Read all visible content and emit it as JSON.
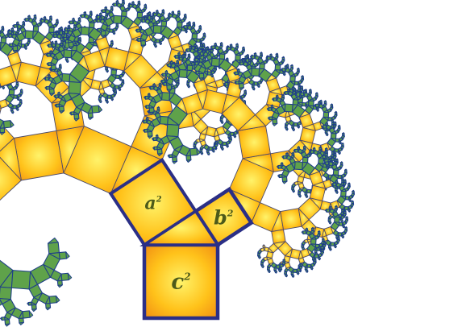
{
  "diagram": {
    "kind": "pythagoras-tree",
    "labels": {
      "a": "a",
      "b": "b",
      "c": "c",
      "exponent": "2"
    },
    "colors": {
      "fill_center": "#fff36a",
      "fill_mid": "#ffc21a",
      "fill_edge": "#f08a12",
      "outline": "#4a4a6a",
      "main_outline": "#2b2f86",
      "leaf_fill": "#5fa24a",
      "leaf_outline": "#1f3f88",
      "label_text": "#4d5a1a",
      "background": "#ffffff"
    }
  }
}
